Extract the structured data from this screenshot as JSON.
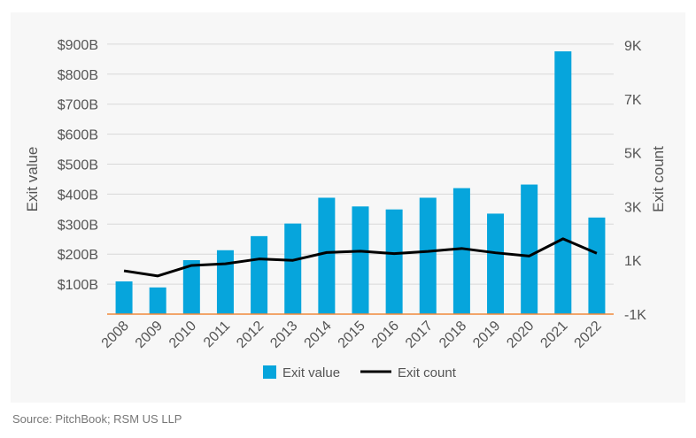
{
  "chart_data": {
    "type": "bar+line",
    "categories": [
      "2008",
      "2009",
      "2010",
      "2011",
      "2012",
      "2013",
      "2014",
      "2015",
      "2016",
      "2017",
      "2018",
      "2019",
      "2020",
      "2021",
      "2022"
    ],
    "series": [
      {
        "name": "Exit value",
        "type": "bar",
        "axis": "left",
        "color": "#06a5dc",
        "values": [
          109,
          89,
          180,
          213,
          260,
          302,
          388,
          359,
          349,
          388,
          420,
          335,
          432,
          876,
          322
        ]
      },
      {
        "name": "Exit count",
        "type": "line",
        "axis": "right",
        "color": "#000000",
        "values": [
          610,
          420,
          810,
          870,
          1050,
          1000,
          1290,
          1340,
          1250,
          1330,
          1440,
          1280,
          1160,
          1800,
          1260
        ]
      }
    ],
    "ylabel": "Exit value",
    "y2label": "Exit count",
    "ylim": [
      0,
      900
    ],
    "y2lim": [
      -1000,
      9000
    ],
    "yticks": [
      "$100B",
      "$200B",
      "$300B",
      "$400B",
      "$500B",
      "$600B",
      "$700B",
      "$800B",
      "$900B"
    ],
    "y2ticks": [
      "-1K",
      "1K",
      "3K",
      "5K",
      "7K",
      "9K"
    ],
    "grid": true,
    "legend": "bottom",
    "baseline_color": "#f08a3c"
  },
  "source": "Source: PitchBook; RSM US LLP"
}
